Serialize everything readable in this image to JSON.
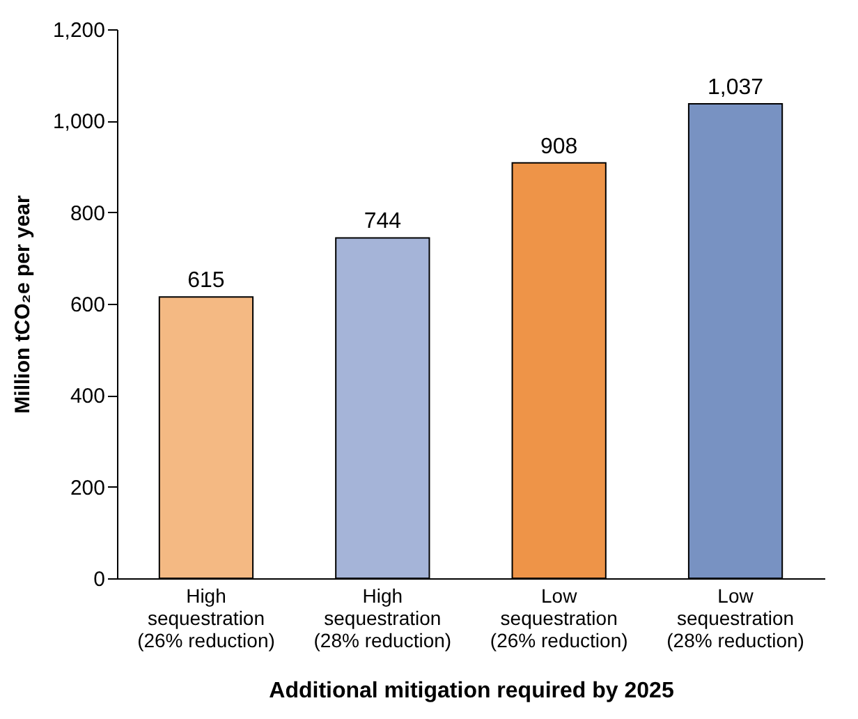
{
  "chart_data": {
    "type": "bar",
    "xlabel": "Additional mitigation required by 2025",
    "ylabel": "Million tCO₂e per year",
    "categories": [
      "High\nsequestration\n(26% reduction)",
      "High\nsequestration\n(28% reduction)",
      "Low\nsequestration\n(26% reduction)",
      "Low\nsequestration\n(28% reduction)"
    ],
    "values": [
      615,
      744,
      908,
      1037
    ],
    "colors": [
      "#f4b983",
      "#a5b4d8",
      "#ee9448",
      "#7892c2"
    ],
    "value_labels": [
      "615",
      "744",
      "908",
      "1,037"
    ],
    "ylim": [
      0,
      1200
    ],
    "yticks": [
      0,
      200,
      400,
      600,
      800,
      {
        "value": 1000,
        "label": "1,000"
      },
      {
        "value": 1200,
        "label": "1,200"
      }
    ],
    "grid": false,
    "legend": false
  }
}
